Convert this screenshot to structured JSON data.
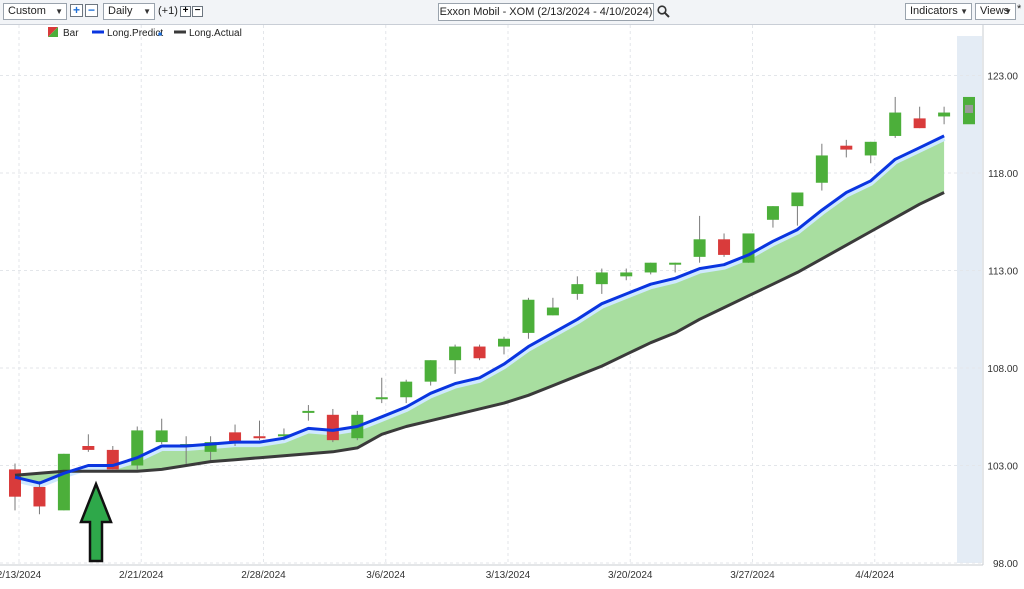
{
  "toolbar": {
    "range_select": "Custom",
    "interval_select": "Daily",
    "offset_label": "(+1)",
    "symbol_title": "Exxon Mobil - XOM (2/13/2024 - 4/10/2024)",
    "indicators_label": "Indicators",
    "views_label": "Views",
    "zoom_in_glyph": "+",
    "zoom_out_glyph": "−",
    "small_plus_glyph": "+",
    "small_minus_glyph": "−",
    "asterisk": "*"
  },
  "colors": {
    "up": "#4caf3a",
    "down": "#d93b3b",
    "predict": "#0a35e0",
    "actual": "#3a3a3a",
    "fill": "#a8dea0",
    "arrow": "#2ea84a"
  },
  "chart_data": {
    "type": "candlestick",
    "legend": [
      "Bar",
      "Long.Predict",
      "Long.Actual"
    ],
    "legend_placement": "top-left",
    "ylim": [
      98,
      124
    ],
    "y_ticks": [
      "98.00",
      "103.00",
      "108.00",
      "113.00",
      "118.00",
      "123.00"
    ],
    "x_ticks": [
      {
        "label": "2/13/2024",
        "i": 0
      },
      {
        "label": "2/21/2024",
        "i": 5
      },
      {
        "label": "2/28/2024",
        "i": 10
      },
      {
        "label": "3/6/2024",
        "i": 15
      },
      {
        "label": "3/13/2024",
        "i": 20
      },
      {
        "label": "3/20/2024",
        "i": 25
      },
      {
        "label": "3/27/2024",
        "i": 30
      },
      {
        "label": "4/4/2024",
        "i": 35
      }
    ],
    "candles": [
      {
        "o": 102.8,
        "h": 103.1,
        "l": 100.7,
        "c": 101.4
      },
      {
        "o": 101.9,
        "h": 102.2,
        "l": 100.5,
        "c": 100.9
      },
      {
        "o": 100.7,
        "h": 103.6,
        "l": 100.7,
        "c": 103.6
      },
      {
        "o": 104.0,
        "h": 104.6,
        "l": 103.7,
        "c": 103.8
      },
      {
        "o": 103.8,
        "h": 104.0,
        "l": 102.8,
        "c": 102.8
      },
      {
        "o": 103.0,
        "h": 105.0,
        "l": 102.8,
        "c": 104.8
      },
      {
        "o": 104.2,
        "h": 105.4,
        "l": 104.1,
        "c": 104.8
      },
      {
        "o": 104.0,
        "h": 104.5,
        "l": 103.0,
        "c": 104.1
      },
      {
        "o": 103.7,
        "h": 104.5,
        "l": 103.2,
        "c": 104.2
      },
      {
        "o": 104.7,
        "h": 105.1,
        "l": 104.0,
        "c": 104.2
      },
      {
        "o": 104.5,
        "h": 105.3,
        "l": 104.3,
        "c": 104.4
      },
      {
        "o": 104.6,
        "h": 104.9,
        "l": 104.3,
        "c": 104.6
      },
      {
        "o": 105.7,
        "h": 106.1,
        "l": 105.3,
        "c": 105.8
      },
      {
        "o": 105.6,
        "h": 105.9,
        "l": 104.2,
        "c": 104.3
      },
      {
        "o": 104.4,
        "h": 105.8,
        "l": 104.3,
        "c": 105.6
      },
      {
        "o": 106.4,
        "h": 107.5,
        "l": 106.2,
        "c": 106.5
      },
      {
        "o": 106.5,
        "h": 107.4,
        "l": 106.2,
        "c": 107.3
      },
      {
        "o": 107.3,
        "h": 108.4,
        "l": 107.1,
        "c": 108.4
      },
      {
        "o": 108.4,
        "h": 109.2,
        "l": 107.7,
        "c": 109.1
      },
      {
        "o": 109.1,
        "h": 109.2,
        "l": 108.4,
        "c": 108.5
      },
      {
        "o": 109.1,
        "h": 109.6,
        "l": 108.7,
        "c": 109.5
      },
      {
        "o": 109.8,
        "h": 111.6,
        "l": 109.5,
        "c": 111.5
      },
      {
        "o": 110.7,
        "h": 111.6,
        "l": 110.7,
        "c": 111.1
      },
      {
        "o": 111.8,
        "h": 112.7,
        "l": 111.5,
        "c": 112.3
      },
      {
        "o": 112.3,
        "h": 113.1,
        "l": 111.8,
        "c": 112.9
      },
      {
        "o": 112.7,
        "h": 113.1,
        "l": 112.5,
        "c": 112.9
      },
      {
        "o": 112.9,
        "h": 113.4,
        "l": 112.8,
        "c": 113.4
      },
      {
        "o": 113.3,
        "h": 113.4,
        "l": 112.9,
        "c": 113.4
      },
      {
        "o": 113.7,
        "h": 115.8,
        "l": 113.4,
        "c": 114.6
      },
      {
        "o": 114.6,
        "h": 114.9,
        "l": 113.7,
        "c": 113.8
      },
      {
        "o": 113.4,
        "h": 114.9,
        "l": 113.4,
        "c": 114.9
      },
      {
        "o": 115.6,
        "h": 116.3,
        "l": 115.2,
        "c": 116.3
      },
      {
        "o": 116.3,
        "h": 117.0,
        "l": 115.3,
        "c": 117.0
      },
      {
        "o": 117.5,
        "h": 119.5,
        "l": 117.1,
        "c": 118.9
      },
      {
        "o": 119.4,
        "h": 119.7,
        "l": 118.8,
        "c": 119.2
      },
      {
        "o": 118.9,
        "h": 119.6,
        "l": 118.5,
        "c": 119.6
      },
      {
        "o": 119.9,
        "h": 121.9,
        "l": 119.8,
        "c": 121.1
      },
      {
        "o": 120.8,
        "h": 121.4,
        "l": 120.3,
        "c": 120.3
      },
      {
        "o": 120.9,
        "h": 121.4,
        "l": 120.5,
        "c": 121.1
      }
    ],
    "next_day_projection": {
      "o": 120.5,
      "h": 121.9,
      "l": 120.5,
      "c": 121.8
    },
    "series": [
      {
        "name": "Long.Predict",
        "values": [
          102.4,
          102.1,
          102.6,
          103.0,
          103.0,
          103.4,
          104.0,
          104.0,
          104.1,
          104.2,
          104.2,
          104.4,
          104.9,
          104.8,
          105.0,
          105.5,
          106.0,
          106.7,
          107.2,
          107.5,
          108.2,
          109.1,
          109.8,
          110.5,
          111.3,
          111.8,
          112.3,
          112.6,
          113.1,
          113.3,
          113.8,
          114.5,
          115.1,
          116.1,
          117.0,
          117.6,
          118.7,
          119.3,
          119.9
        ]
      },
      {
        "name": "Long.Actual",
        "values": [
          102.5,
          102.6,
          102.7,
          102.7,
          102.7,
          102.7,
          102.8,
          103.0,
          103.2,
          103.3,
          103.4,
          103.5,
          103.6,
          103.7,
          103.9,
          104.6,
          105.0,
          105.3,
          105.6,
          105.9,
          106.2,
          106.6,
          107.1,
          107.6,
          108.1,
          108.7,
          109.3,
          109.8,
          110.5,
          111.1,
          111.7,
          112.3,
          112.9,
          113.6,
          114.3,
          115.0,
          115.7,
          116.4,
          117.0
        ]
      }
    ]
  }
}
